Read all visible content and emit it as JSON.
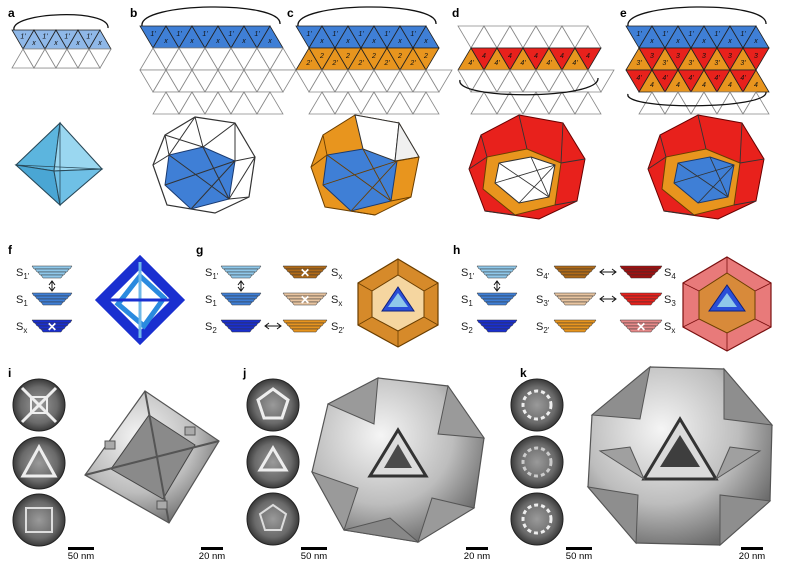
{
  "panels": {
    "a": "a",
    "b": "b",
    "c": "c",
    "d": "d",
    "e": "e",
    "f": "f",
    "g": "g",
    "h": "h",
    "i": "i",
    "j": "j",
    "k": "k"
  },
  "colors": {
    "light_blue": "#8fb8e8",
    "blue": "#3f7fd6",
    "dark_blue": "#1a2fd0",
    "orange": "#e8951e",
    "red": "#e8211c",
    "pink": "#e88a8a",
    "cyan_octa": "#67c3e8"
  },
  "strip_labels": {
    "a": [
      "1'",
      "x",
      "1'",
      "x",
      "1'",
      "x",
      "1'",
      "x"
    ],
    "b": [
      "1'",
      "x",
      "1'",
      "x",
      "1'",
      "x",
      "1'",
      "x",
      "1'",
      "x"
    ],
    "c_top": [
      "1'",
      "x",
      "1'",
      "x",
      "1'",
      "x",
      "1'",
      "x",
      "1'",
      "x"
    ],
    "c_bottom": [
      "2'",
      "2",
      "2'",
      "2",
      "2'",
      "2",
      "2'",
      "2",
      "2'",
      "2"
    ],
    "d": [
      "4'",
      "4",
      "4'",
      "4",
      "4'",
      "4",
      "4'",
      "4",
      "4'",
      "4"
    ],
    "e_top": [
      "1'",
      "x",
      "1'",
      "x",
      "1'",
      "x",
      "1'",
      "x",
      "1'",
      "x"
    ],
    "e_mid": [
      "3'",
      "3",
      "3'",
      "3",
      "3'",
      "3",
      "3'",
      "3",
      "3'",
      "3"
    ],
    "e_bot": [
      "4'",
      "4",
      "4'",
      "4",
      "4'",
      "4",
      "4'",
      "4",
      "4'",
      "4"
    ]
  },
  "f": {
    "labels": [
      {
        "S": "S",
        "sub": "1'"
      },
      {
        "S": "S",
        "sub": "1"
      },
      {
        "S": "S",
        "sub": "x"
      }
    ]
  },
  "g": {
    "left": [
      {
        "S": "S",
        "sub": "1'"
      },
      {
        "S": "S",
        "sub": "1"
      },
      {
        "S": "S",
        "sub": "2"
      }
    ],
    "right": [
      {
        "S": "S",
        "sub": "x"
      },
      {
        "S": "S",
        "sub": "x"
      },
      {
        "S": "S",
        "sub": "2'"
      }
    ]
  },
  "h": {
    "left": [
      {
        "S": "S",
        "sub": "1'"
      },
      {
        "S": "S",
        "sub": "1"
      },
      {
        "S": "S",
        "sub": "2"
      }
    ],
    "mid": [
      {
        "S": "S",
        "sub": "4'"
      },
      {
        "S": "S",
        "sub": "3'"
      },
      {
        "S": "S",
        "sub": "2'"
      }
    ],
    "right": [
      {
        "S": "S",
        "sub": "4"
      },
      {
        "S": "S",
        "sub": "3"
      },
      {
        "S": "S",
        "sub": "x"
      }
    ]
  },
  "scalebars": {
    "i_left": "50 nm",
    "i_right": "20 nm",
    "j_left": "50 nm",
    "j_right": "20 nm",
    "k_left": "50 nm",
    "k_right": "20 nm"
  }
}
